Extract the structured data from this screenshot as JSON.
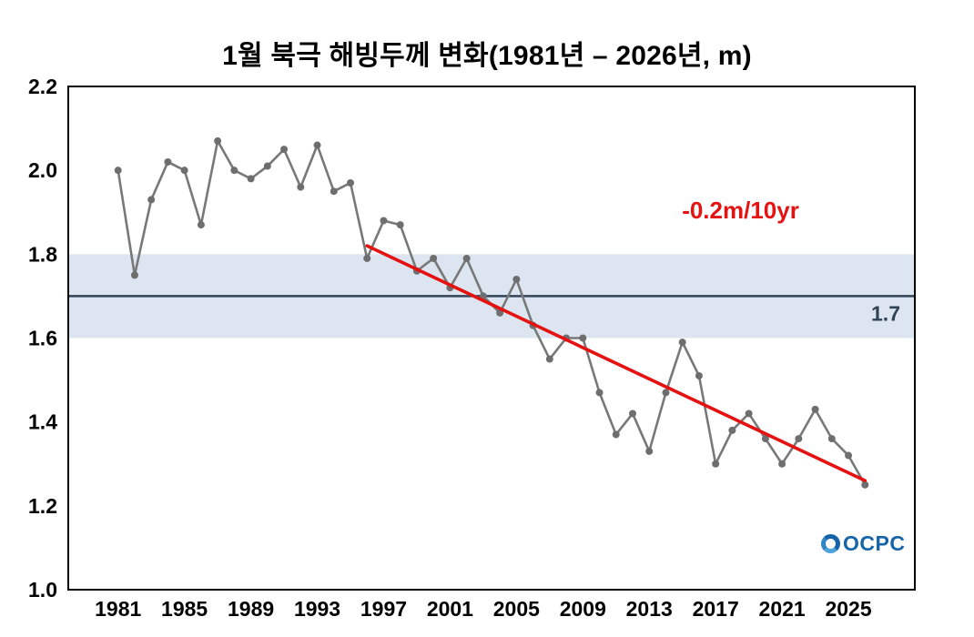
{
  "chart_data": {
    "type": "line",
    "title": "1월 북극 해빙두께 변화(1981년 – 2026년, m)",
    "xlabel": "",
    "ylabel": "",
    "xlim": [
      1978,
      2029
    ],
    "ylim": [
      1.0,
      2.2
    ],
    "yticks": [
      "1.0",
      "1.2",
      "1.4",
      "1.6",
      "1.8",
      "2.0",
      "2.2"
    ],
    "xticks": [
      1981,
      1985,
      1989,
      1993,
      1997,
      2001,
      2005,
      2009,
      2013,
      2017,
      2021,
      2025
    ],
    "grid": false,
    "legend_position": "none",
    "x": [
      1981,
      1982,
      1983,
      1984,
      1985,
      1986,
      1987,
      1988,
      1989,
      1990,
      1991,
      1992,
      1993,
      1994,
      1995,
      1996,
      1997,
      1998,
      1999,
      2000,
      2001,
      2002,
      2003,
      2004,
      2005,
      2006,
      2007,
      2008,
      2009,
      2010,
      2011,
      2012,
      2013,
      2014,
      2015,
      2016,
      2017,
      2018,
      2019,
      2020,
      2021,
      2022,
      2023,
      2024,
      2025,
      2026
    ],
    "series": [
      {
        "name": "january-arctic-sea-ice-thickness",
        "color": "#787878",
        "marker_color": "#6e6e6e",
        "values": [
          2.0,
          1.75,
          1.93,
          2.02,
          2.0,
          1.87,
          2.07,
          2.0,
          1.98,
          2.01,
          2.05,
          1.96,
          2.06,
          1.95,
          1.97,
          1.79,
          1.88,
          1.87,
          1.76,
          1.79,
          1.72,
          1.79,
          1.7,
          1.66,
          1.74,
          1.63,
          1.55,
          1.6,
          1.6,
          1.47,
          1.37,
          1.42,
          1.33,
          1.47,
          1.59,
          1.51,
          1.3,
          1.38,
          1.42,
          1.36,
          1.3,
          1.36,
          1.43,
          1.36,
          1.32,
          1.25
        ]
      }
    ],
    "trend_line": {
      "label": "-0.2m/10yr",
      "color": "#e51212",
      "x1": 1996,
      "y1": 1.82,
      "x2": 2026,
      "y2": 1.26,
      "label_x": 2018.5,
      "label_y": 1.885
    },
    "reference_band": {
      "center": 1.7,
      "low": 1.6,
      "high": 1.8,
      "label": "1.7",
      "line_color": "#31445a",
      "band_color": "#dce5f0",
      "label_color": "#2e4356"
    }
  },
  "logo": {
    "text": "OCPC",
    "color": "#1565a8"
  }
}
